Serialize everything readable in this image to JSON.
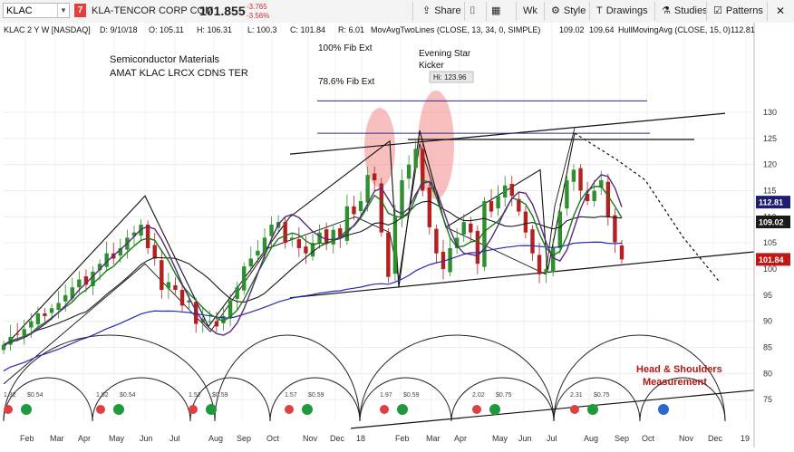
{
  "toolbar": {
    "symbol": "KLAC",
    "badge": "7",
    "company": "KLA-TENCOR CORP COM",
    "price": "101.855",
    "change": "-3.765",
    "change_pct": "-3.56%",
    "share_label": "Share",
    "wk_label": "Wk",
    "style_label": "Style",
    "drawings_label": "Drawings",
    "studies_label": "Studies",
    "patterns_label": "Patterns",
    "icons": [
      "share-icon",
      "calendar-icon",
      "settings-icon",
      "drawings-icon",
      "studies-icon",
      "patterns-icon",
      "close-icon"
    ]
  },
  "header": {
    "title": "KLAC 2 Y W [NASDAQ]",
    "date": "D: 9/10/18",
    "open": "O: 105.11",
    "high": "H: 106.31",
    "low": "L: 100.3",
    "close": "C: 101.84",
    "range": "R: 6.01",
    "study1": "MovAvgTwoLines (CLOSE, 13, 34, 0, SIMPLE)",
    "study1_v1": "109.02",
    "study1_v2": "109.64",
    "study2": "HullMovingAvg (CLOSE, 15, 0)",
    "study2_v": "112.81"
  },
  "annotations": {
    "semis_line1": "Semiconductor Materials",
    "semis_line2": "AMAT KLAC LRCX CDNS TER",
    "fib100": "100% Fib Ext",
    "fib786": "78.6% Fib Ext",
    "evening1": "Evening Star",
    "evening2": "Kicker",
    "hi": "Hi: 123.96",
    "hs1": "Head & Shoulders",
    "hs2": "Measurement"
  },
  "price_tags": [
    {
      "value": "112.81",
      "color": "#1e1e6e"
    },
    {
      "value": "109.02",
      "color": "#1a1a1a"
    },
    {
      "value": "101.84",
      "color": "#c01818"
    }
  ],
  "colors": {
    "up": "#2f8f2f",
    "down": "#b22020",
    "sma13": "#1a7a1a",
    "sma34": "#1a1a1a",
    "hull": "#5a2a7a",
    "fib_line": "#2a2a8a",
    "trendline": "#111111",
    "highlight": "#f28a8a"
  },
  "chart_data": {
    "type": "line",
    "series_type": "candlestick",
    "symbol": "KLAC",
    "interval": "Weekly",
    "span": "2 Y",
    "exchange": "NASDAQ",
    "ylim": [
      70,
      133
    ],
    "y_ticks": [
      75,
      80,
      85,
      90,
      95,
      100,
      105,
      110,
      115,
      120,
      125,
      130
    ],
    "x_labels": [
      "Feb",
      "Mar",
      "Apr",
      "May",
      "Jun",
      "Jul",
      "Aug",
      "Sep",
      "Oct",
      "Nov",
      "Dec",
      "18",
      "Feb",
      "Mar",
      "Apr",
      "May",
      "Jun",
      "Jul",
      "Aug",
      "Sep",
      "Oct",
      "Nov",
      "Dec",
      "19"
    ],
    "closes": [
      85.5,
      87.0,
      87.5,
      88.5,
      90.0,
      91.5,
      91.0,
      92.5,
      93.5,
      95.0,
      96.5,
      98.0,
      97.0,
      99.5,
      101.0,
      103.0,
      102.0,
      104.0,
      106.0,
      107.0,
      108.5,
      104.0,
      102.0,
      96.0,
      97.5,
      96.0,
      93.0,
      94.0,
      89.5,
      90.5,
      90.0,
      89.0,
      91.0,
      94.0,
      96.5,
      100.5,
      102.0,
      103.5,
      106.0,
      108.5,
      109.0,
      105.0,
      106.0,
      104.0,
      103.0,
      105.0,
      107.0,
      105.0,
      107.5,
      106.0,
      112.0,
      110.5,
      113.0,
      118.0,
      117.0,
      107.0,
      98.5,
      110.0,
      117.0,
      120.0,
      123.0,
      115.0,
      108.0,
      103.0,
      100.0,
      104.0,
      106.0,
      109.0,
      107.0,
      101.0,
      113.0,
      111.0,
      114.0,
      116.0,
      114.0,
      111.0,
      107.0,
      103.0,
      99.0,
      100.0,
      104.0,
      111.0,
      117.0,
      119.0,
      115.0,
      113.0,
      115.0,
      117.0,
      110.0,
      105.1,
      101.84
    ],
    "study_last": {
      "sma13": 109.02,
      "sma34": 109.64,
      "hull": 112.81
    },
    "last": {
      "date": "9/10/18",
      "open": 105.11,
      "high": 106.31,
      "low": 100.3,
      "close": 101.84
    },
    "hi": 123.96,
    "levels": {
      "fib_100": 132.2,
      "fib_786": 126.0
    },
    "dividend_labels": [
      "$0.54",
      "$0.54",
      "$0.59",
      "$0.59",
      "$0.59",
      "$0.75",
      "$0.75"
    ],
    "earnings_labels": [
      "1.32",
      "1.52",
      "1.52",
      "1.57",
      "1.97",
      "2.02",
      "2.31"
    ]
  }
}
